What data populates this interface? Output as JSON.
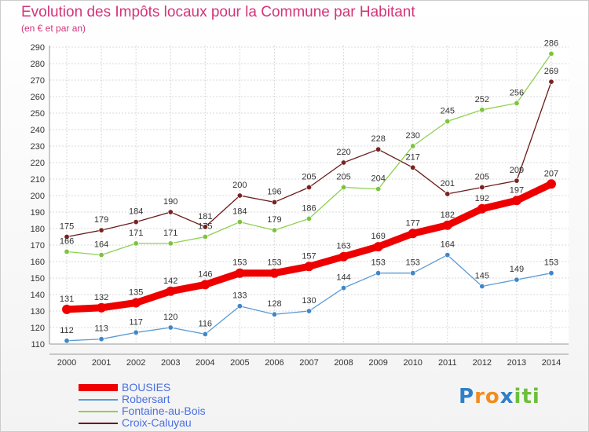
{
  "title": "Evolution des Impôts locaux pour la Commune par Habitant",
  "subtitle": "(en € et par an)",
  "logo": {
    "letters": [
      "P",
      "r",
      "o",
      "x",
      "i",
      "t",
      "i"
    ],
    "colors": [
      "#2f7fc8",
      "#f28c1e",
      "#f28c1e",
      "#2f7fc8",
      "#6cbf3a",
      "#6cbf3a",
      "#6cbf3a"
    ]
  },
  "chart_data": {
    "type": "line",
    "x": [
      "2000",
      "2001",
      "2002",
      "2003",
      "2004",
      "2005",
      "2006",
      "2007",
      "2008",
      "2009",
      "2010",
      "2011",
      "2012",
      "2013",
      "2014"
    ],
    "ylim": [
      110,
      290
    ],
    "yticks": [
      110,
      120,
      130,
      140,
      150,
      160,
      170,
      180,
      190,
      200,
      210,
      220,
      230,
      240,
      250,
      260,
      270,
      280,
      290
    ],
    "grid": true,
    "legend_position": "bottom-left",
    "series": [
      {
        "name": "Croix-Caluyau",
        "color": "#6b1a1a",
        "marker": "#7a2222",
        "width": 1.3,
        "values": [
          175,
          179,
          184,
          190,
          181,
          200,
          196,
          205,
          220,
          228,
          217,
          201,
          205,
          209,
          269
        ]
      },
      {
        "name": "Fontaine-au-Bois",
        "color": "#8fd14f",
        "marker": "#7cc43d",
        "width": 1.3,
        "values": [
          166,
          164,
          171,
          171,
          175,
          184,
          179,
          186,
          205,
          204,
          230,
          245,
          252,
          256,
          286
        ]
      },
      {
        "name": "Robersart",
        "color": "#5b9bd5",
        "marker": "#3f87c9",
        "width": 1.3,
        "values": [
          112,
          113,
          117,
          120,
          116,
          133,
          128,
          130,
          144,
          153,
          153,
          164,
          145,
          149,
          153
        ]
      },
      {
        "name": "BOUSIES",
        "color": "#ee0000",
        "marker": "#ee0000",
        "width": 9,
        "values": [
          131,
          132,
          135,
          142,
          146,
          153,
          153,
          157,
          163,
          169,
          177,
          182,
          192,
          197,
          207
        ]
      }
    ],
    "point_labels": {
      "Croix-Caluyau": [
        "175",
        "179",
        "184",
        "190",
        "181",
        "200",
        "196",
        "205",
        "220",
        "228",
        "217",
        "201",
        "205",
        "209",
        "269"
      ],
      "Fontaine-au-Bois": [
        "166",
        "164",
        "171",
        "171",
        "175",
        "184",
        "179",
        "186",
        "205",
        "204",
        "230",
        "245",
        "252",
        "256",
        "286"
      ],
      "Robersart": [
        "112",
        "113",
        "117",
        "120",
        "116",
        "133",
        "128",
        "130",
        "144",
        "153",
        "153",
        "164",
        "145",
        "149",
        "153"
      ],
      "BOUSIES": [
        "131",
        "132",
        "135",
        "142",
        "146",
        "153",
        "153",
        "157",
        "163",
        "169",
        "177",
        "182",
        "192",
        "197",
        "207"
      ]
    },
    "legend": [
      "BOUSIES",
      "Robersart",
      "Fontaine-au-Bois",
      "Croix-Caluyau"
    ]
  }
}
